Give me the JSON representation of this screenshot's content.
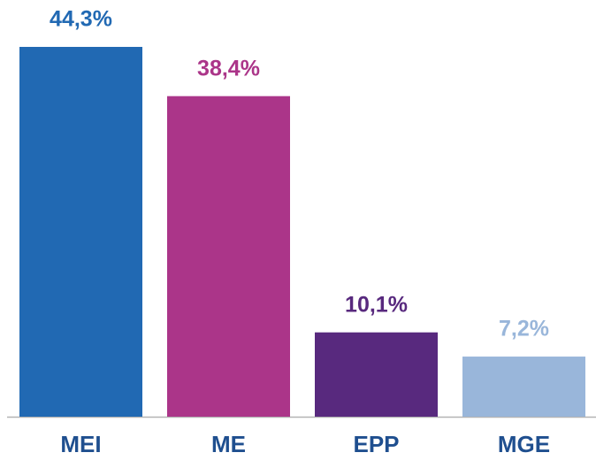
{
  "chart_data": {
    "type": "bar",
    "categories": [
      "MEI",
      "ME",
      "EPP",
      "MGE"
    ],
    "values": [
      44.3,
      38.4,
      10.1,
      7.2
    ],
    "value_labels": [
      "44,3%",
      "38,4%",
      "10,1%",
      "7,2%"
    ],
    "colors": [
      "#2169b3",
      "#ab3589",
      "#58297e",
      "#99b6da"
    ],
    "ylim": [
      0,
      45
    ]
  }
}
